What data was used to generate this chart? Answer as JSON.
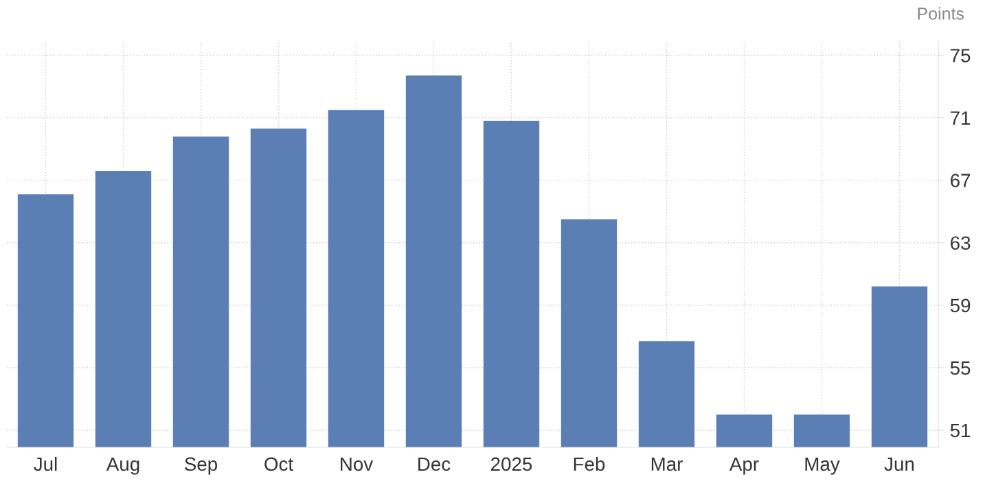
{
  "chart_data": {
    "type": "bar",
    "ylabel": "Points",
    "categories": [
      "Jul",
      "Aug",
      "Sep",
      "Oct",
      "Nov",
      "Dec",
      "2025",
      "Feb",
      "Mar",
      "Apr",
      "May",
      "Jun"
    ],
    "values": [
      66.1,
      67.6,
      69.8,
      70.3,
      71.5,
      73.7,
      70.8,
      64.5,
      56.7,
      52.0,
      52.0,
      60.2
    ],
    "color": "#5b7fb5",
    "ylim": [
      49.9,
      75.9
    ],
    "yticks": [
      51,
      55,
      59,
      63,
      67,
      71,
      75
    ],
    "grid": true
  }
}
